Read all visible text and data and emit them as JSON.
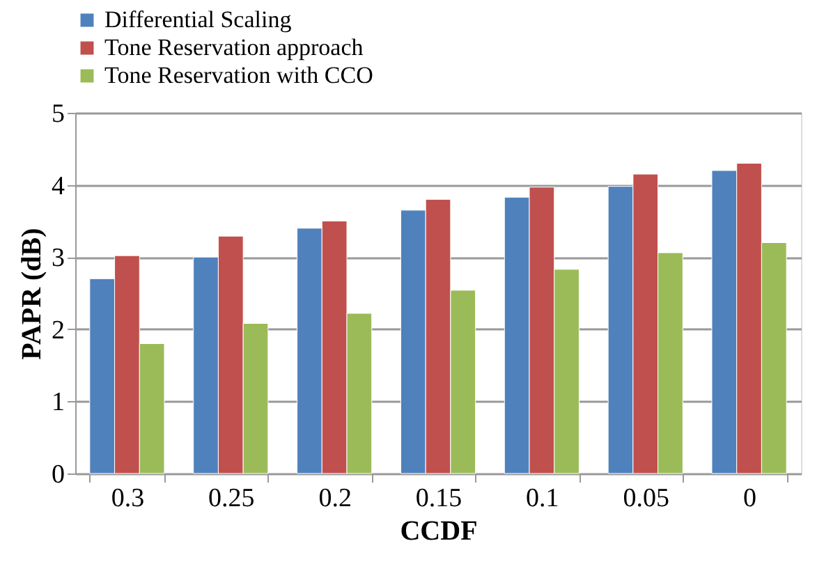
{
  "chart_data": {
    "type": "bar",
    "xlabel": "CCDF",
    "ylabel": "PAPR  (dB)",
    "categories": [
      "0.3",
      "0.25",
      "0.2",
      "0.15",
      "0.1",
      "0.05",
      "0"
    ],
    "series": [
      {
        "name": "Differential Scaling",
        "color": "#4f81bd",
        "values": [
          2.7,
          3.0,
          3.4,
          3.65,
          3.83,
          3.98,
          4.2
        ]
      },
      {
        "name": "Tone Reservation approach",
        "color": "#c0504d",
        "values": [
          3.02,
          3.29,
          3.5,
          3.8,
          3.97,
          4.15,
          4.3
        ]
      },
      {
        "name": "Tone Reservation with CCO",
        "color": "#9bbb59",
        "values": [
          1.8,
          2.08,
          2.22,
          2.54,
          2.83,
          3.06,
          3.2
        ]
      }
    ],
    "ylim": [
      0,
      5
    ],
    "yticks": [
      0,
      1,
      2,
      3,
      4,
      5
    ],
    "grid": "y",
    "legend": "top"
  }
}
